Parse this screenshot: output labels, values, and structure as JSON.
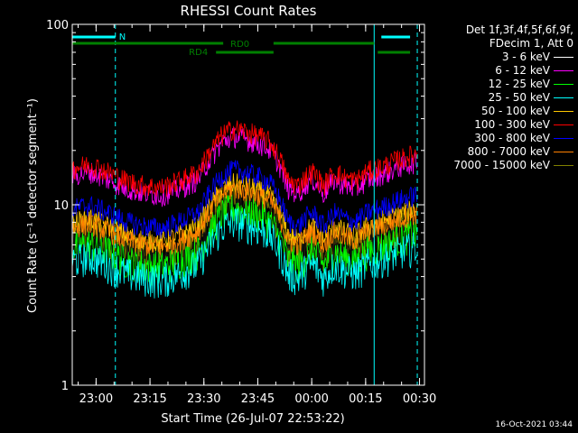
{
  "chart_data": {
    "type": "line",
    "title": "RHESSI Count Rates",
    "xlabel": "Start Time (26-Jul-07 22:53:22)",
    "ylabel": "Count Rate (s⁻¹ detector segment⁻¹)",
    "yscale": "log",
    "ylim": [
      1,
      100
    ],
    "y_ticks": [
      "1",
      "10",
      "100"
    ],
    "x_ticks": [
      "23:00",
      "23:15",
      "23:30",
      "23:45",
      "00:00",
      "00:15",
      "00:30"
    ],
    "legend_header": [
      "Det 1f,3f,4f,5f,6f,9f,",
      "FDecim 1, Att 0"
    ],
    "legend_placement": "right",
    "time_profile": {
      "x_minutes": [
        0,
        5,
        10,
        15,
        20,
        25,
        30,
        35,
        38,
        42,
        45,
        48,
        52,
        55,
        58,
        60,
        63,
        65,
        67,
        70,
        73,
        76,
        79,
        82,
        85,
        88,
        90,
        93,
        96
      ],
      "factor": [
        1.0,
        1.05,
        0.95,
        0.85,
        0.8,
        0.78,
        0.85,
        0.95,
        1.2,
        1.55,
        1.65,
        1.6,
        1.5,
        1.4,
        1.1,
        0.85,
        0.8,
        0.9,
        0.95,
        0.8,
        0.95,
        0.88,
        0.85,
        0.95,
        1.0,
        1.05,
        1.1,
        1.15,
        1.2
      ]
    },
    "series": [
      {
        "name": "3 - 6 keV",
        "color": "#000000",
        "base": 6.3
      },
      {
        "name": "6 - 12 keV",
        "color": "#ff00ff",
        "base": 14.5
      },
      {
        "name": "12 - 25 keV",
        "color": "#00ff00",
        "base": 5.8
      },
      {
        "name": "25 - 50 keV",
        "color": "#00ffff",
        "base": 4.9
      },
      {
        "name": "50 - 100 keV",
        "color": "#ffc800",
        "base": 8.0
      },
      {
        "name": "100 - 300 keV",
        "color": "#ff0000",
        "base": 16.0
      },
      {
        "name": "300 - 800 keV",
        "color": "#0000ff",
        "base": 9.5
      },
      {
        "name": "800 - 7000 keV",
        "color": "#ff8000",
        "base": 7.5
      },
      {
        "name": "7000 - 15000 keV",
        "color": "#808000",
        "base": 6.8
      }
    ],
    "annotations": {
      "N": {
        "label": "N",
        "color": "#00ffff",
        "start_min": 0,
        "end_min": 12
      },
      "RD0": {
        "label": "RD0",
        "color": "#008000",
        "segments": [
          [
            0,
            42
          ],
          [
            56,
            84
          ]
        ]
      },
      "RD4": {
        "label": "RD4",
        "color": "#008000",
        "segments": [
          [
            40,
            56
          ],
          [
            85,
            94
          ]
        ]
      },
      "extra_bars": [
        {
          "color": "#00ffff",
          "start_min": 86,
          "end_min": 94
        }
      ]
    },
    "vertical_markers": [
      {
        "minute": 0,
        "color": "#00ffff",
        "style": "solid"
      },
      {
        "minute": 12,
        "color": "#00ffff",
        "style": "dashed"
      },
      {
        "minute": 84,
        "color": "#00ffff",
        "style": "solid"
      },
      {
        "minute": 96,
        "color": "#00ffff",
        "style": "dashed"
      }
    ]
  },
  "footer": {
    "timestamp": "16-Oct-2021 03:44"
  }
}
